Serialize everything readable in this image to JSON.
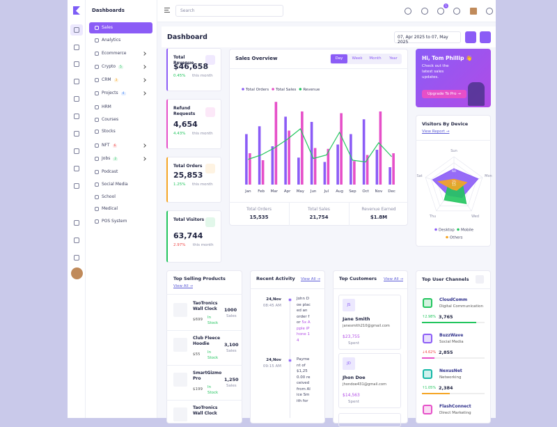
{
  "sidebar": {
    "brand": "Dashboards",
    "menu": [
      {
        "label": "Sales"
      },
      {
        "label": "Analytics"
      },
      {
        "label": "Ecommerce"
      },
      {
        "label": "Crypto",
        "badge": "5"
      },
      {
        "label": "CRM",
        "badge": "3"
      },
      {
        "label": "Projects",
        "badge": "4"
      },
      {
        "label": "HRM"
      },
      {
        "label": "Courses"
      },
      {
        "label": "Stocks"
      },
      {
        "label": "NFT",
        "badge": "6"
      },
      {
        "label": "Jobs",
        "badge": "2"
      },
      {
        "label": "Podcast"
      },
      {
        "label": "Social Media"
      },
      {
        "label": "School"
      },
      {
        "label": "Medical"
      },
      {
        "label": "POS System"
      }
    ]
  },
  "topbar": {
    "search": "Search",
    "notifications": "5"
  },
  "header": {
    "title": "Dashboard",
    "date_range": "07, Apr 2025 to 07, May 2025"
  },
  "stats": [
    {
      "title": "Total Revenue",
      "value": "$46,658",
      "change": "0.45%",
      "note": "this month"
    },
    {
      "title": "Refund Requests",
      "value": "4,654",
      "change": "4.43%",
      "note": "this month"
    },
    {
      "title": "Total Orders",
      "value": "25,853",
      "change": "1.25%",
      "note": "this month"
    },
    {
      "title": "Total Visitors",
      "value": "63,744",
      "change": "2.97%",
      "note": "this month"
    }
  ],
  "sales_tabs": [
    "Day",
    "Week",
    "Month",
    "Year"
  ],
  "sales_summary": [
    {
      "label": "Total Orders",
      "value": "15,535"
    },
    {
      "label": "Total Sales",
      "value": "21,754"
    },
    {
      "label": "Revenue Earned",
      "value": "$1.8M"
    }
  ],
  "promo": {
    "greeting": "Hi, Tom Phillip 👋",
    "text": "Check out the latest sales updates.",
    "button": "Upgrade To Pro →"
  },
  "visitors": {
    "link": "View Report →"
  },
  "chart_data": [
    {
      "type": "bar",
      "title": "Sales Overview",
      "categories": [
        "Jan",
        "Feb",
        "Mar",
        "Apr",
        "May",
        "Jun",
        "Jul",
        "Aug",
        "Sep",
        "Oct",
        "Nov",
        "Dec"
      ],
      "ylim": [
        0,
        100
      ],
      "series": [
        {
          "name": "Total Orders",
          "color": "#8b5cf6",
          "values": [
            58,
            67,
            44,
            78,
            31,
            72,
            26,
            46,
            58,
            75,
            40,
            20
          ]
        },
        {
          "name": "Total Sales",
          "color": "#e64fc8",
          "values": [
            36,
            28,
            95,
            62,
            84,
            42,
            41,
            82,
            27,
            34,
            84,
            36
          ]
        },
        {
          "name": "Revenue",
          "type": "line",
          "color": "#22c55e",
          "values": [
            29,
            34,
            42,
            52,
            64,
            30,
            34,
            60,
            28,
            26,
            48,
            32
          ]
        }
      ]
    },
    {
      "type": "radar",
      "title": "Visitors By Device",
      "categories": [
        "Sun",
        "Mon",
        "Wed",
        "Thu",
        "Sat"
      ],
      "rlim": [
        0,
        100
      ],
      "series": [
        {
          "name": "Desktop",
          "color": "#8b5cf6",
          "values": [
            60,
            85,
            45,
            35,
            75
          ]
        },
        {
          "name": "Mobile",
          "color": "#22c55e",
          "values": [
            15,
            30,
            70,
            55,
            20
          ]
        },
        {
          "name": "Others",
          "color": "#f5a524",
          "values": [
            25,
            45,
            15,
            10,
            55
          ]
        }
      ]
    }
  ],
  "top_products": {
    "title": "Top Selling Products",
    "link": "View All →",
    "items": [
      {
        "name": "TaoTronics Wall Clock",
        "price": "$699",
        "status": "In Stock",
        "sales": "1000",
        "unit": "Sales"
      },
      {
        "name": "Club Fleece Hoodie",
        "price": "$55",
        "status": "In Stock",
        "sales": "3,100",
        "unit": "Sales"
      },
      {
        "name": "SmartGizmo Pro",
        "price": "$199",
        "status": "In Stock",
        "sales": "1,250",
        "unit": "Sales"
      },
      {
        "name": "TaoTronics Wall Clock"
      }
    ]
  },
  "recent_activity": {
    "title": "Recent Activity",
    "link": "View All →",
    "items": [
      {
        "date": "24,Nov",
        "time": "08:45 AM",
        "text": "John Doe placed an order for",
        "highlight": "5x Apple iPhone 14"
      },
      {
        "date": "24,Nov",
        "time": "09:15 AM",
        "text": "Payment of $1,250.00 received from Alice Smith for"
      }
    ]
  },
  "top_customers": {
    "title": "Top Customers",
    "link": "View All →",
    "items": [
      {
        "initials": "JS",
        "name": "Jane Smith",
        "email": "janesmith210@gmail.com",
        "amount": "$23,755",
        "note": "Spent"
      },
      {
        "initials": "JD",
        "name": "Jhon Doe",
        "email": "jhondoe431@gmail.com",
        "amount": "$14,563",
        "note": "Spent"
      }
    ]
  },
  "top_channels": {
    "title": "Top User Channels",
    "items": [
      {
        "name": "CloudComm",
        "category": "Digital Communication",
        "change": "↑2.98%",
        "value": "3,765"
      },
      {
        "name": "BuzzWave",
        "category": "Social Media",
        "change": "↓4.62%",
        "value": "2,855"
      },
      {
        "name": "NexusNet",
        "category": "Networking",
        "change": "↑1.05%",
        "value": "2,384"
      },
      {
        "name": "FlashConnect",
        "category": "Direct Marketing"
      }
    ]
  }
}
